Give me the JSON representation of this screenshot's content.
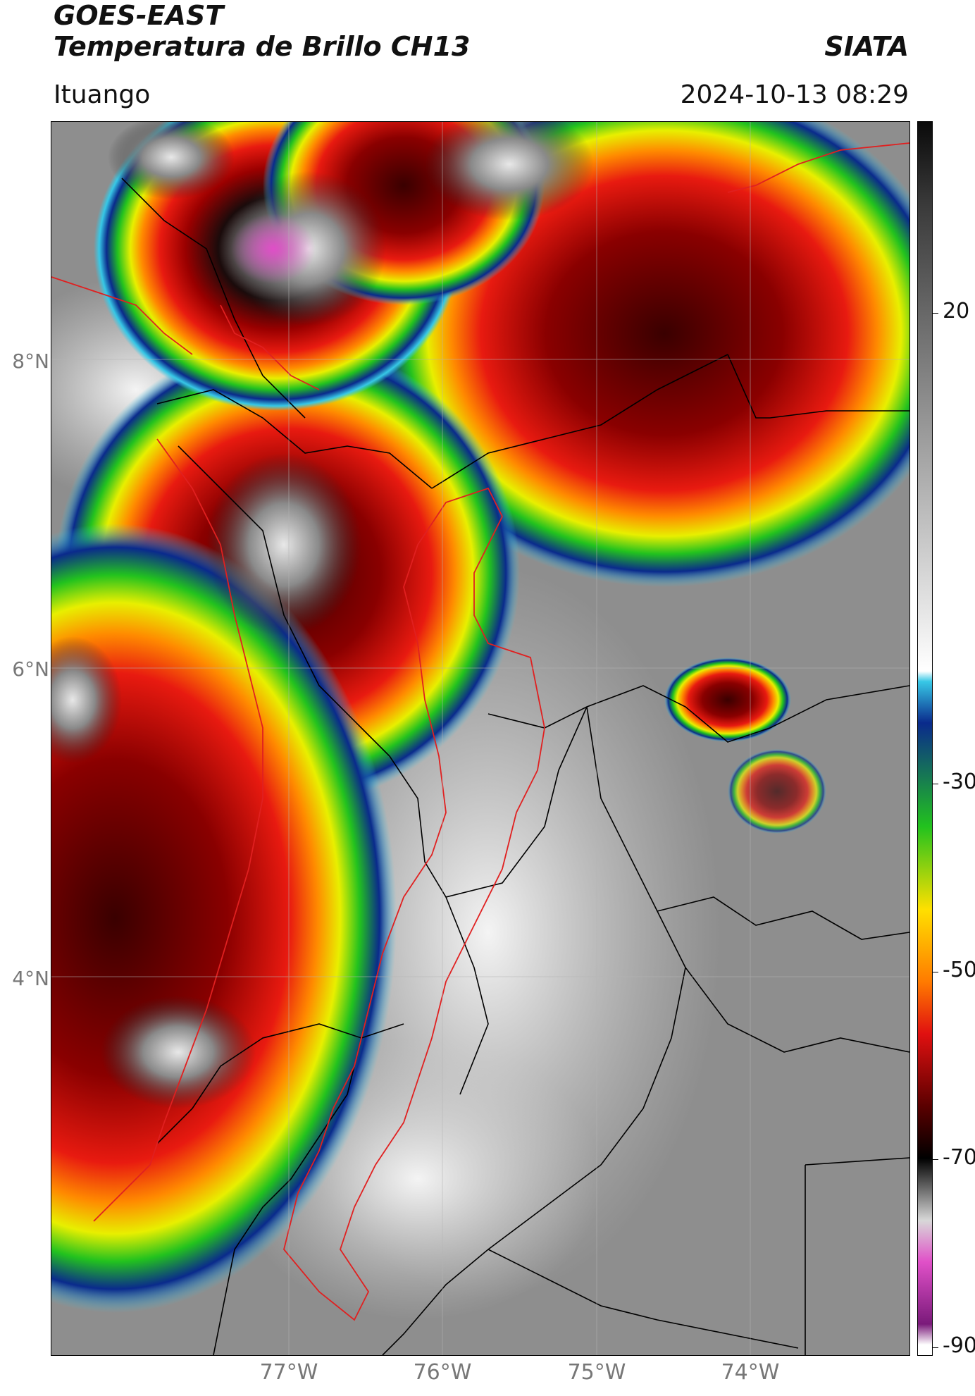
{
  "header": {
    "title_line1": "GOES-EAST",
    "title_line2": "Temperatura de Brillo CH13",
    "brand": "SIATA",
    "region": "Ituango",
    "timestamp": "2024-10-13 08:29"
  },
  "map": {
    "lat_ticks": [
      "8°N",
      "6°N",
      "4°N"
    ],
    "lon_ticks": [
      "77°W",
      "76°W",
      "75°W",
      "74°W"
    ],
    "border_color": "#000000",
    "region_outline_color": "#e02020"
  },
  "colorbar": {
    "ticks": [
      "20",
      "-30",
      "-50",
      "-70",
      "-90"
    ],
    "scale": "brightness temperature",
    "stops": [
      {
        "value": 20,
        "color": "#3a3a3a"
      },
      {
        "value": -25,
        "color": "#ffffff"
      },
      {
        "value": -26,
        "color": "#37c8e6"
      },
      {
        "value": -30,
        "color": "#0a2a8c"
      },
      {
        "value": -40,
        "color": "#22c21e"
      },
      {
        "value": -48,
        "color": "#ffe000"
      },
      {
        "value": -55,
        "color": "#ff7a00"
      },
      {
        "value": -60,
        "color": "#e01010"
      },
      {
        "value": -67,
        "color": "#5a0000"
      },
      {
        "value": -72,
        "color": "#000000"
      },
      {
        "value": -78,
        "color": "#d8d8d8"
      },
      {
        "value": -82,
        "color": "#e050c8"
      },
      {
        "value": -88,
        "color": "#7a1a7a"
      },
      {
        "value": -90,
        "color": "#ffffff"
      }
    ]
  }
}
